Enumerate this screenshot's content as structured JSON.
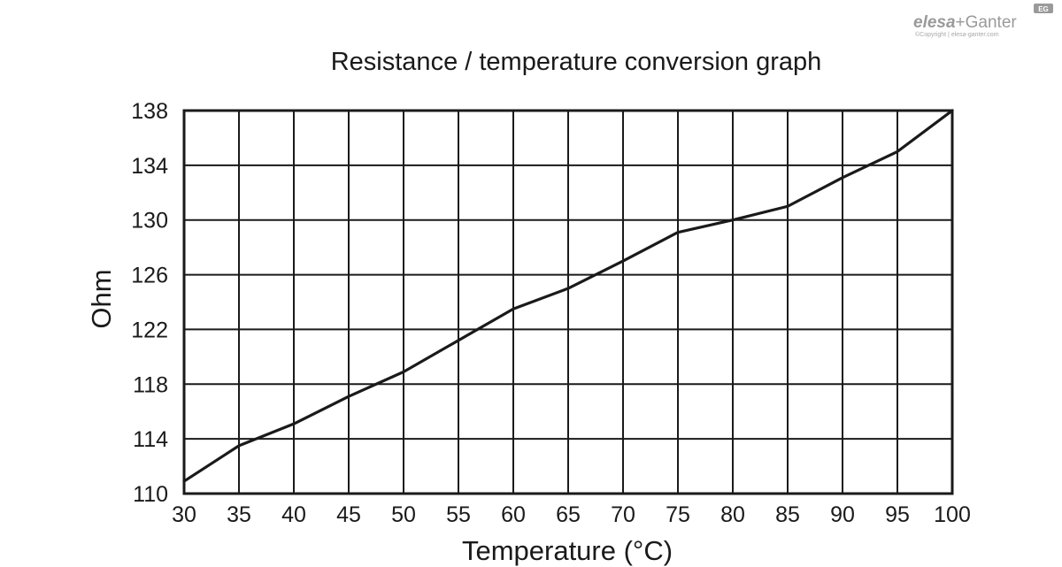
{
  "logo": {
    "brand_part1": "elesa",
    "brand_part2": "+Ganter",
    "badge": "EG",
    "copyright": "©Copyright | elesa-ganter.com"
  },
  "colors": {
    "ink": "#1a1a1a",
    "logo_gray": "#9a9a9a"
  },
  "chart_data": {
    "type": "line",
    "title": "Resistance / temperature conversion graph",
    "xlabel": "Temperature (°C)",
    "ylabel": "Ohm",
    "xlim": [
      30,
      100
    ],
    "ylim": [
      110,
      138
    ],
    "x_ticks": [
      30,
      35,
      40,
      45,
      50,
      55,
      60,
      65,
      70,
      75,
      80,
      85,
      90,
      95,
      100
    ],
    "y_ticks": [
      110,
      114,
      118,
      122,
      126,
      130,
      134,
      138
    ],
    "x_grid": [
      30,
      35,
      40,
      45,
      50,
      55,
      60,
      65,
      70,
      75,
      80,
      85,
      90,
      95,
      100
    ],
    "y_grid": [
      110,
      114,
      118,
      122,
      126,
      130,
      134,
      138
    ],
    "grid": true,
    "legend": "none",
    "series": [
      {
        "x": [
          30,
          35,
          40,
          45,
          50,
          55,
          60,
          65,
          70,
          75,
          80,
          85,
          90,
          95,
          100
        ],
        "y": [
          110.9,
          113.5,
          115.1,
          117.1,
          118.9,
          121.2,
          123.5,
          125.0,
          127.0,
          129.1,
          130.0,
          131.0,
          133.1,
          135.0,
          138.0
        ]
      }
    ]
  }
}
